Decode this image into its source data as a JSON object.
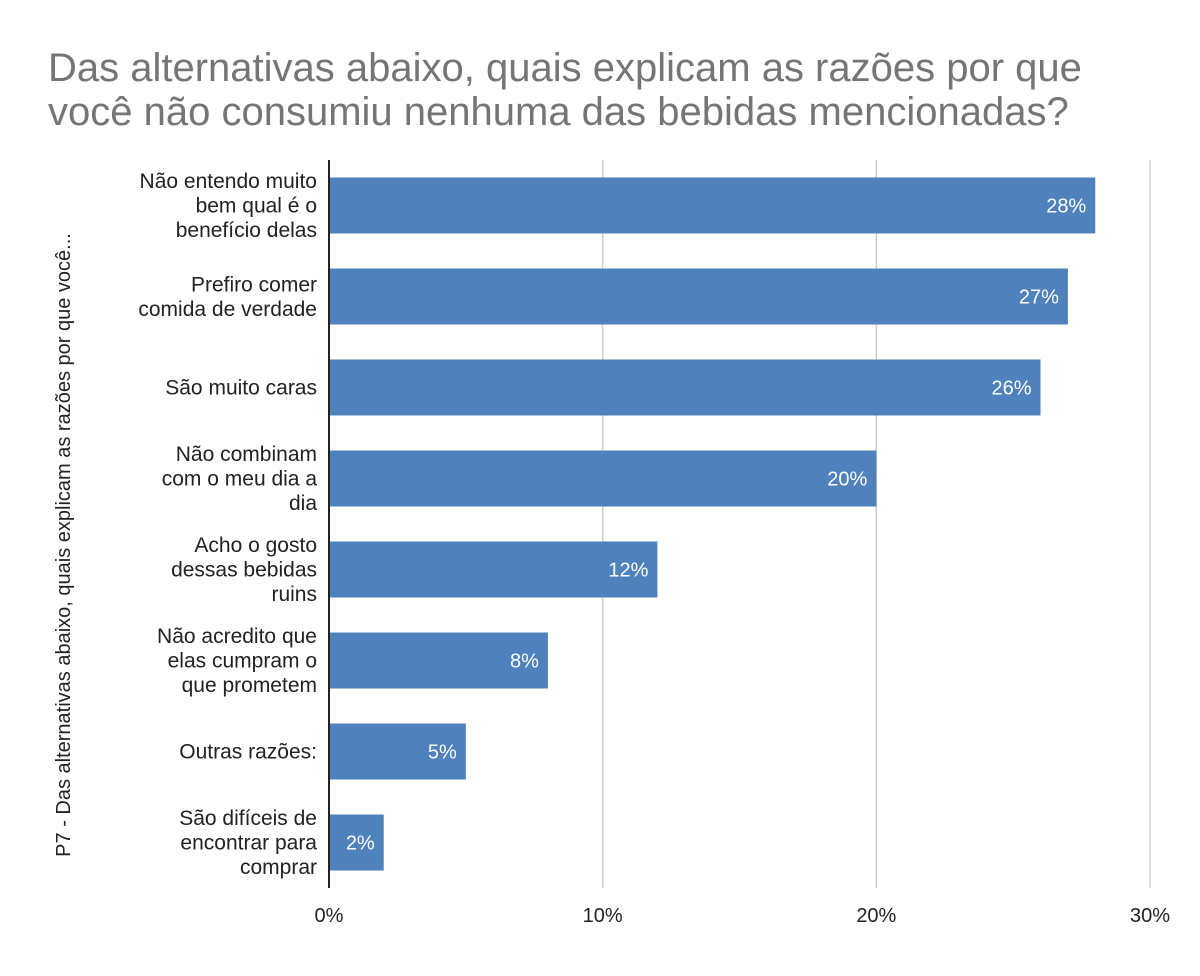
{
  "chart_data": {
    "type": "bar",
    "orientation": "horizontal",
    "title": "Das alternativas abaixo, quais explicam as razões por que você não consumiu nenhuma das bebidas mencionadas?",
    "ylabel": "P7 - Das alternativas abaixo, quais explicam as razões por que você...",
    "xlabel": "",
    "categories": [
      [
        "Não entendo muito",
        "bem qual é o",
        "benefício delas"
      ],
      [
        "Prefiro comer",
        "comida de verdade"
      ],
      [
        "São muito caras"
      ],
      [
        "Não combinam",
        "com o meu dia a",
        "dia"
      ],
      [
        "Acho o gosto",
        "dessas bebidas",
        "ruins"
      ],
      [
        "Não acredito que",
        "elas cumpram o",
        "que prometem"
      ],
      [
        "Outras razões:"
      ],
      [
        "São difíceis de",
        "encontrar para",
        "comprar"
      ]
    ],
    "values": [
      28,
      27,
      26,
      20,
      12,
      8,
      5,
      2
    ],
    "value_labels": [
      "28%",
      "27%",
      "26%",
      "20%",
      "12%",
      "8%",
      "5%",
      "2%"
    ],
    "xlim": [
      0,
      30
    ],
    "ticks": [
      0,
      10,
      20,
      30
    ],
    "tick_labels": [
      "0%",
      "10%",
      "20%",
      "30%"
    ],
    "grid": true,
    "legend": "none",
    "colors": {
      "bar": "#4f81bd",
      "grid": "#cccccc",
      "axis": "#222222",
      "title": "#757575"
    }
  }
}
